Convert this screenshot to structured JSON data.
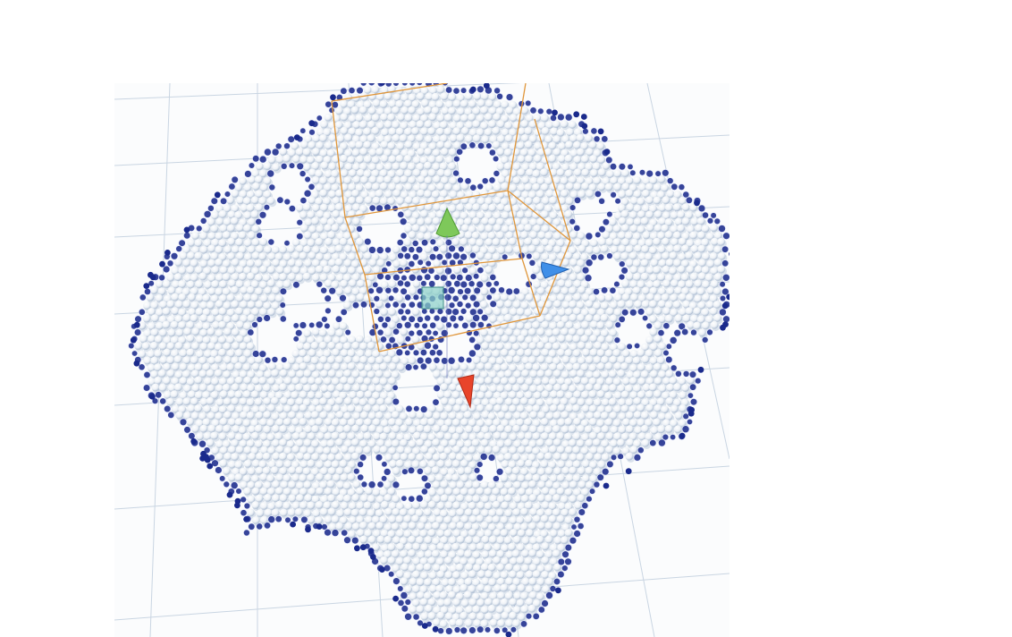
{
  "scene": {
    "grid_visible": true,
    "colors": {
      "background": "#fbfcfd",
      "grid_line": "#c9d5e2",
      "particle": "#f4f7fb",
      "particle_shade": "#9fb3cc",
      "boundary_particle": "#1a2a8c",
      "bounding_box": "#e0963a",
      "axis_y": "#7ec85a",
      "axis_x": "#e8442a",
      "axis_z": "#3f8fe8",
      "center_handle": "#8ad0c8"
    },
    "gizmo": {
      "axes": [
        "y-axis-cone",
        "x-axis-cone",
        "z-axis-cone"
      ],
      "center": "center-handle"
    }
  }
}
